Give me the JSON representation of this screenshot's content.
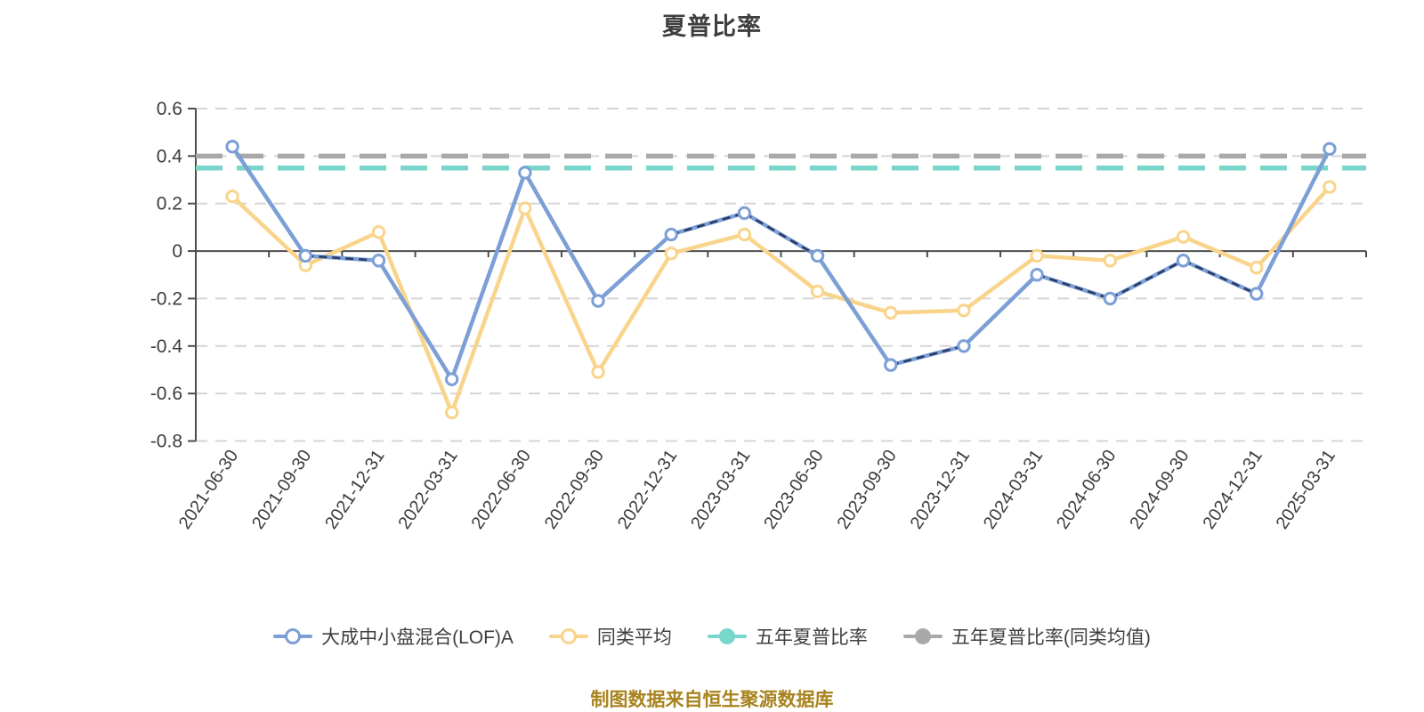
{
  "title": "夏普比率",
  "footer_note": "制图数据来自恒生聚源数据库",
  "colors": {
    "fund_line": "#7C9FD6",
    "fund_overlay_dash": "#2A3C64",
    "peer_line": "#F9D48B",
    "five_year_line": "#78D6CA",
    "five_year_avg_line": "#A9A9A9",
    "grid": "#D5D5D5",
    "axis": "#4D4D4D",
    "tick_text": "#3C3C3C",
    "title_text": "#3F3F3F",
    "footer_text": "#A8831E",
    "marker_fill": "#FFFFFF"
  },
  "legend": {
    "items": [
      {
        "label": "大成中小盘混合(LOF)A",
        "color": "#7C9FD6",
        "fill": "#FFFFFF"
      },
      {
        "label": "同类平均",
        "color": "#F9D48B",
        "fill": "#FFFFFF"
      },
      {
        "label": "五年夏普比率",
        "color": "#78D6CA",
        "fill": "#78D6CA"
      },
      {
        "label": "五年夏普比率(同类均值)",
        "color": "#A9A9A9",
        "fill": "#A9A9A9"
      }
    ]
  },
  "chart_data": {
    "type": "line",
    "title": "夏普比率",
    "categories": [
      "2021-06-30",
      "2021-09-30",
      "2021-12-31",
      "2022-03-31",
      "2022-06-30",
      "2022-09-30",
      "2022-12-31",
      "2023-03-31",
      "2023-06-30",
      "2023-09-30",
      "2023-12-31",
      "2024-03-31",
      "2024-06-30",
      "2024-09-30",
      "2024-12-31",
      "2025-03-31"
    ],
    "series": [
      {
        "name": "大成中小盘混合(LOF)A",
        "type": "line",
        "color": "#7C9FD6",
        "overlay_dash_color": "#2A3C64",
        "values": [
          0.44,
          -0.02,
          -0.04,
          -0.54,
          0.33,
          -0.21,
          0.07,
          0.16,
          -0.02,
          -0.48,
          -0.4,
          -0.1,
          -0.2,
          -0.04,
          -0.18,
          0.43
        ]
      },
      {
        "name": "同类平均",
        "type": "line",
        "color": "#F9D48B",
        "values": [
          0.23,
          -0.06,
          0.08,
          -0.68,
          0.18,
          -0.51,
          -0.01,
          0.07,
          -0.17,
          -0.26,
          -0.25,
          -0.02,
          -0.04,
          0.06,
          -0.07,
          0.27
        ]
      },
      {
        "name": "五年夏普比率",
        "type": "hline",
        "color": "#78D6CA",
        "value": 0.35
      },
      {
        "name": "五年夏普比率(同类均值)",
        "type": "hline",
        "color": "#A9A9A9",
        "value": 0.4
      }
    ],
    "xlabel": "",
    "ylabel": "",
    "ylim": [
      -0.8,
      0.6
    ],
    "ytick_step": 0.2,
    "ytick_labels": [
      "0.6",
      "0.4",
      "0.2",
      "0",
      "-0.2",
      "-0.4",
      "-0.6",
      "-0.8"
    ],
    "grid": true,
    "gridline_style": "dashed",
    "legend_position": "bottom",
    "x_label_rotation": -56
  }
}
